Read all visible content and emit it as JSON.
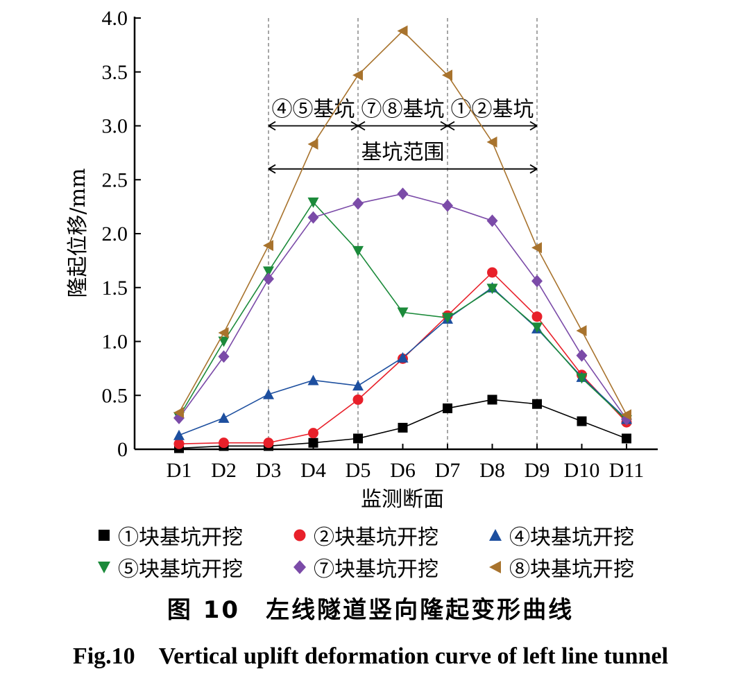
{
  "chart_data": {
    "type": "line",
    "categories": [
      "D1",
      "D2",
      "D3",
      "D4",
      "D5",
      "D6",
      "D7",
      "D8",
      "D9",
      "D10",
      "D11"
    ],
    "xlabel": "监测断面",
    "ylabel": "隆起位移/mm",
    "ylim": [
      0,
      4.0
    ],
    "yticks": [
      "0",
      "0.5",
      "1.0",
      "1.5",
      "2.0",
      "2.5",
      "3.0",
      "3.5",
      "4.0"
    ],
    "ytick_values": [
      0,
      0.5,
      1.0,
      1.5,
      2.0,
      2.5,
      3.0,
      3.5,
      4.0
    ],
    "grid": false,
    "legend_position": "bottom",
    "series": [
      {
        "name": "①块基坑开挖",
        "marker": "square",
        "color": "#000000",
        "values": [
          0.01,
          0.03,
          0.03,
          0.06,
          0.1,
          0.2,
          0.38,
          0.46,
          0.42,
          0.26,
          0.1
        ]
      },
      {
        "name": "②块基坑开挖",
        "marker": "circle",
        "color": "#e8202a",
        "values": [
          0.05,
          0.06,
          0.06,
          0.15,
          0.46,
          0.84,
          1.24,
          1.64,
          1.23,
          0.69,
          0.25
        ]
      },
      {
        "name": "④块基坑开挖",
        "marker": "triangle-up",
        "color": "#1d4f9f",
        "values": [
          0.13,
          0.29,
          0.51,
          0.64,
          0.59,
          0.85,
          1.21,
          1.5,
          1.12,
          0.67,
          0.28
        ]
      },
      {
        "name": "⑤块基坑开挖",
        "marker": "triangle-down",
        "color": "#1b8a3a",
        "values": [
          0.3,
          1.0,
          1.65,
          2.29,
          1.84,
          1.27,
          1.22,
          1.49,
          1.13,
          0.66,
          0.27
        ]
      },
      {
        "name": "⑦块基坑开挖",
        "marker": "diamond",
        "color": "#7b4ba8",
        "values": [
          0.29,
          0.86,
          1.58,
          2.15,
          2.28,
          2.37,
          2.26,
          2.12,
          1.56,
          0.87,
          0.28
        ]
      },
      {
        "name": "⑧块基坑开挖",
        "marker": "triangle-left",
        "color": "#a8732d",
        "values": [
          0.34,
          1.08,
          1.89,
          2.83,
          3.47,
          3.88,
          3.47,
          2.85,
          1.87,
          1.1,
          0.32
        ]
      }
    ],
    "vlines_at": [
      "D3",
      "D5",
      "D7",
      "D9"
    ],
    "annotations": [
      {
        "text": "④⑤基坑",
        "from": "D3",
        "to": "D5",
        "level": 3.0
      },
      {
        "text": "⑦⑧基坑",
        "from": "D5",
        "to": "D7",
        "level": 3.0
      },
      {
        "text": "①②基坑",
        "from": "D7",
        "to": "D9",
        "level": 3.0
      },
      {
        "text": "基坑范围",
        "from": "D3",
        "to": "D9",
        "level": 2.6
      }
    ]
  },
  "caption": {
    "cn": "图 10　左线隧道竖向隆起变形曲线",
    "en": "Fig.10　Vertical uplift deformation curve of left line tunnel"
  }
}
